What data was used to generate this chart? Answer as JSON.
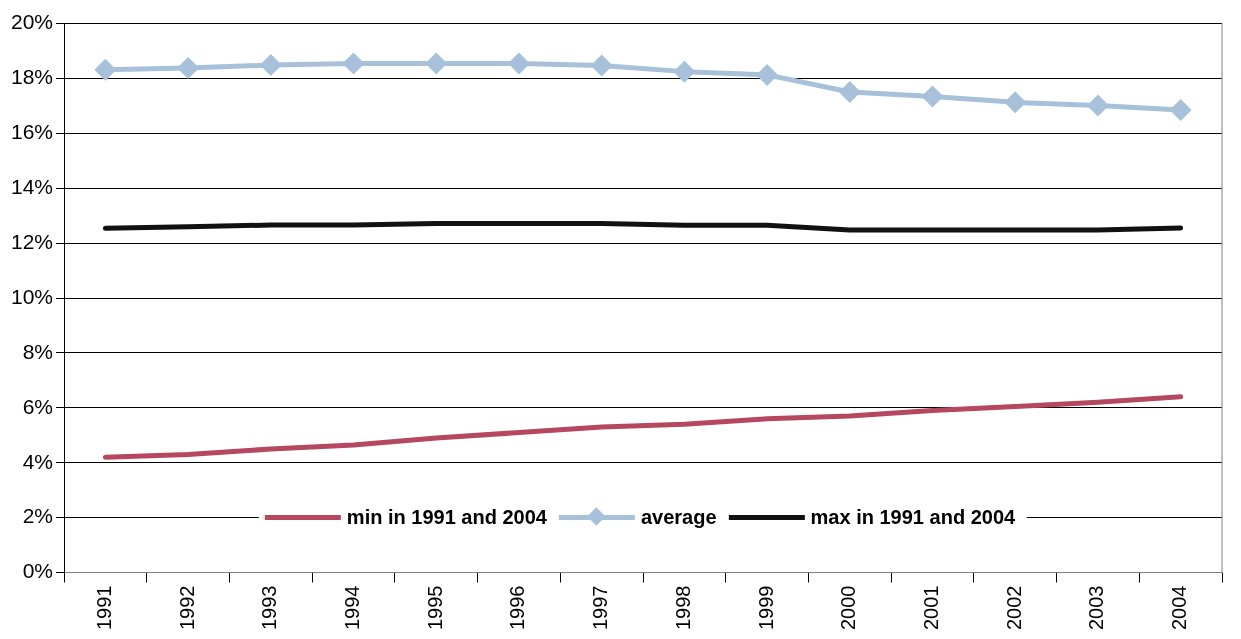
{
  "chart_data": {
    "type": "line",
    "categories": [
      "1991",
      "1992",
      "1993",
      "1994",
      "1995",
      "1996",
      "1997",
      "1998",
      "1999",
      "2000",
      "2001",
      "2002",
      "2003",
      "2004"
    ],
    "series": [
      {
        "name": "min in 1991 and 2004",
        "color": "#b5485f",
        "marker": "none",
        "values": [
          4.2,
          4.3,
          4.5,
          4.65,
          4.9,
          5.1,
          5.3,
          5.4,
          5.6,
          5.7,
          5.9,
          6.05,
          6.2,
          6.4
        ]
      },
      {
        "name": "average",
        "color": "#a8c1da",
        "marker": "diamond",
        "values": [
          18.32,
          18.38,
          18.49,
          18.55,
          18.55,
          18.55,
          18.47,
          18.25,
          18.13,
          17.51,
          17.34,
          17.13,
          17.02,
          16.85
        ]
      },
      {
        "name": "max in 1991 and 2004",
        "color": "#111111",
        "marker": "none",
        "values": [
          12.54,
          12.6,
          12.66,
          12.66,
          12.72,
          12.72,
          12.72,
          12.65,
          12.65,
          12.48,
          12.48,
          12.48,
          12.48,
          12.55
        ]
      }
    ],
    "ylim": [
      0,
      20
    ],
    "yticks": [
      {
        "value": 0,
        "label": "0%"
      },
      {
        "value": 2,
        "label": "2%"
      },
      {
        "value": 4,
        "label": "4%"
      },
      {
        "value": 6,
        "label": "6%"
      },
      {
        "value": 8,
        "label": "8%"
      },
      {
        "value": 10,
        "label": "10%"
      },
      {
        "value": 12,
        "label": "12%"
      },
      {
        "value": 14,
        "label": "14%"
      },
      {
        "value": 16,
        "label": "16%"
      },
      {
        "value": 18,
        "label": "18%"
      },
      {
        "value": 20,
        "label": "20%"
      }
    ],
    "grid": "y",
    "legend": "bottom",
    "line_style": "solid"
  }
}
